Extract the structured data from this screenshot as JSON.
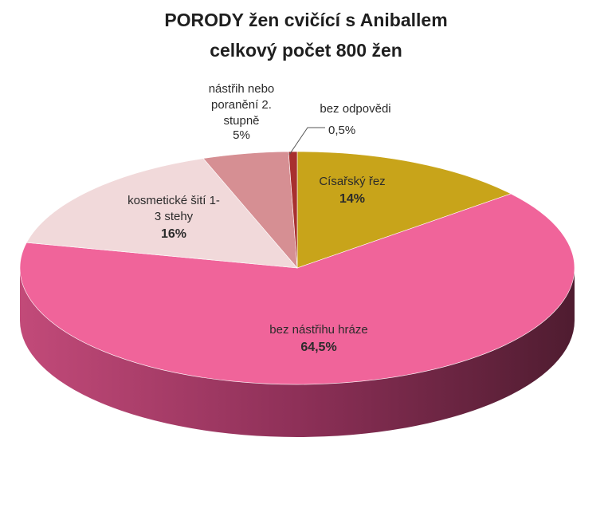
{
  "chart_data": {
    "type": "pie",
    "title_lines": [
      "PORODY žen cvičící s Aniballem",
      "celkový počet 800 žen"
    ],
    "slices": [
      {
        "label_lines": [
          "Císařský řez"
        ],
        "value_text": "14%",
        "value": 14,
        "color": "#c8a41a"
      },
      {
        "label_lines": [
          "bez nástřihu hráze"
        ],
        "value_text": "64,5%",
        "value": 64.5,
        "color": "#f0649a"
      },
      {
        "label_lines": [
          "kosmetické šití  1-",
          "3 stehy"
        ],
        "value_text": "16%",
        "value": 16,
        "color": "#f1d9da"
      },
      {
        "label_lines": [
          "nástřih nebo",
          "poranění 2.",
          "stupně"
        ],
        "value_text": "5%",
        "value": 5,
        "color": "#d68f93"
      },
      {
        "label_lines": [
          "bez odpovědi"
        ],
        "value_text": "0,5%",
        "value": 0.5,
        "color": "#a8302f"
      }
    ]
  }
}
